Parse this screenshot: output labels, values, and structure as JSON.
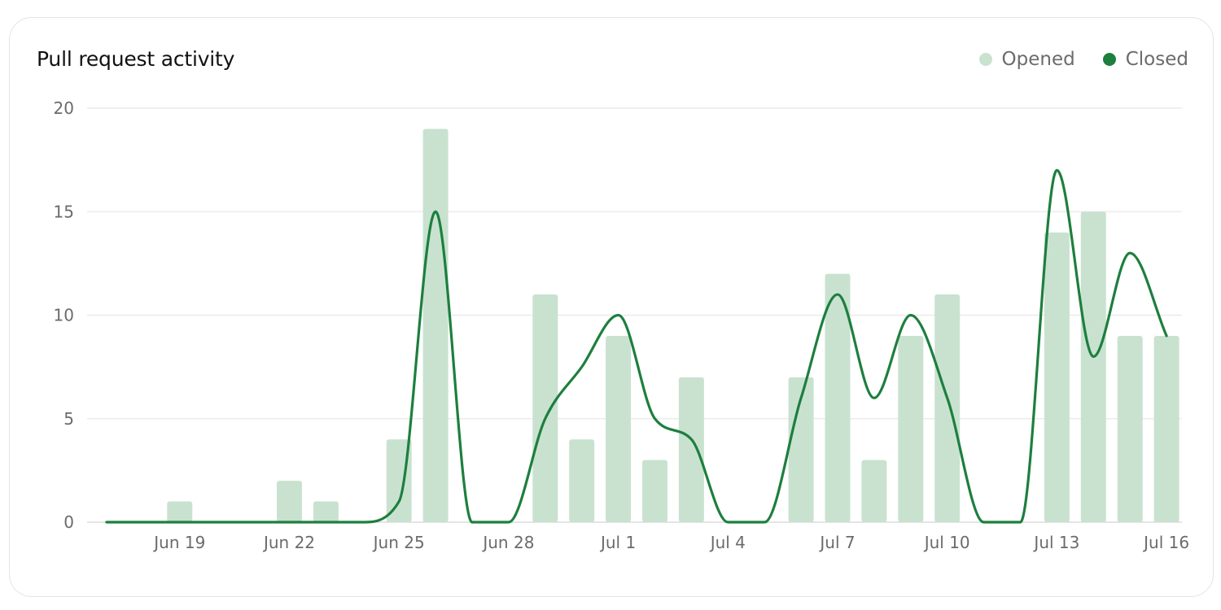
{
  "card": {
    "title": "Pull request activity"
  },
  "legend": [
    {
      "label": "Opened",
      "color": "#c9e2d0"
    },
    {
      "label": "Closed",
      "color": "#1d7f3e"
    }
  ],
  "chart_data": {
    "type": "bar",
    "title": "Pull request activity",
    "xlabel": "",
    "ylabel": "",
    "ylim": [
      0,
      20
    ],
    "yticks": [
      0,
      5,
      10,
      15,
      20
    ],
    "grid": true,
    "legend_position": "top-right",
    "categories": [
      "Jun 17",
      "Jun 18",
      "Jun 19",
      "Jun 20",
      "Jun 21",
      "Jun 22",
      "Jun 23",
      "Jun 24",
      "Jun 25",
      "Jun 26",
      "Jun 27",
      "Jun 28",
      "Jun 29",
      "Jun 30",
      "Jul 1",
      "Jul 2",
      "Jul 3",
      "Jul 4",
      "Jul 5",
      "Jul 6",
      "Jul 7",
      "Jul 8",
      "Jul 9",
      "Jul 10",
      "Jul 11",
      "Jul 12",
      "Jul 13",
      "Jul 14",
      "Jul 15",
      "Jul 16"
    ],
    "xtick_labels": [
      "Jun 19",
      "Jun 22",
      "Jun 25",
      "Jun 28",
      "Jul 1",
      "Jul 4",
      "Jul 7",
      "Jul 10",
      "Jul 13",
      "Jul 16"
    ],
    "series": [
      {
        "name": "Opened",
        "type": "bar",
        "color": "#c9e2d0",
        "values": [
          0,
          0,
          1,
          0,
          0,
          2,
          1,
          0,
          4,
          19,
          0,
          0,
          11,
          4,
          9,
          3,
          7,
          0,
          0,
          7,
          12,
          3,
          9,
          11,
          0,
          0,
          14,
          15,
          9,
          9
        ]
      },
      {
        "name": "Closed",
        "type": "line",
        "color": "#1d7f3e",
        "values": [
          0,
          0,
          0,
          0,
          0,
          0,
          0,
          0,
          1,
          15,
          0,
          0,
          5,
          7.5,
          10,
          5,
          4,
          0,
          0,
          6,
          11,
          6,
          10,
          6,
          0,
          0,
          17,
          8,
          13,
          9
        ]
      }
    ]
  }
}
